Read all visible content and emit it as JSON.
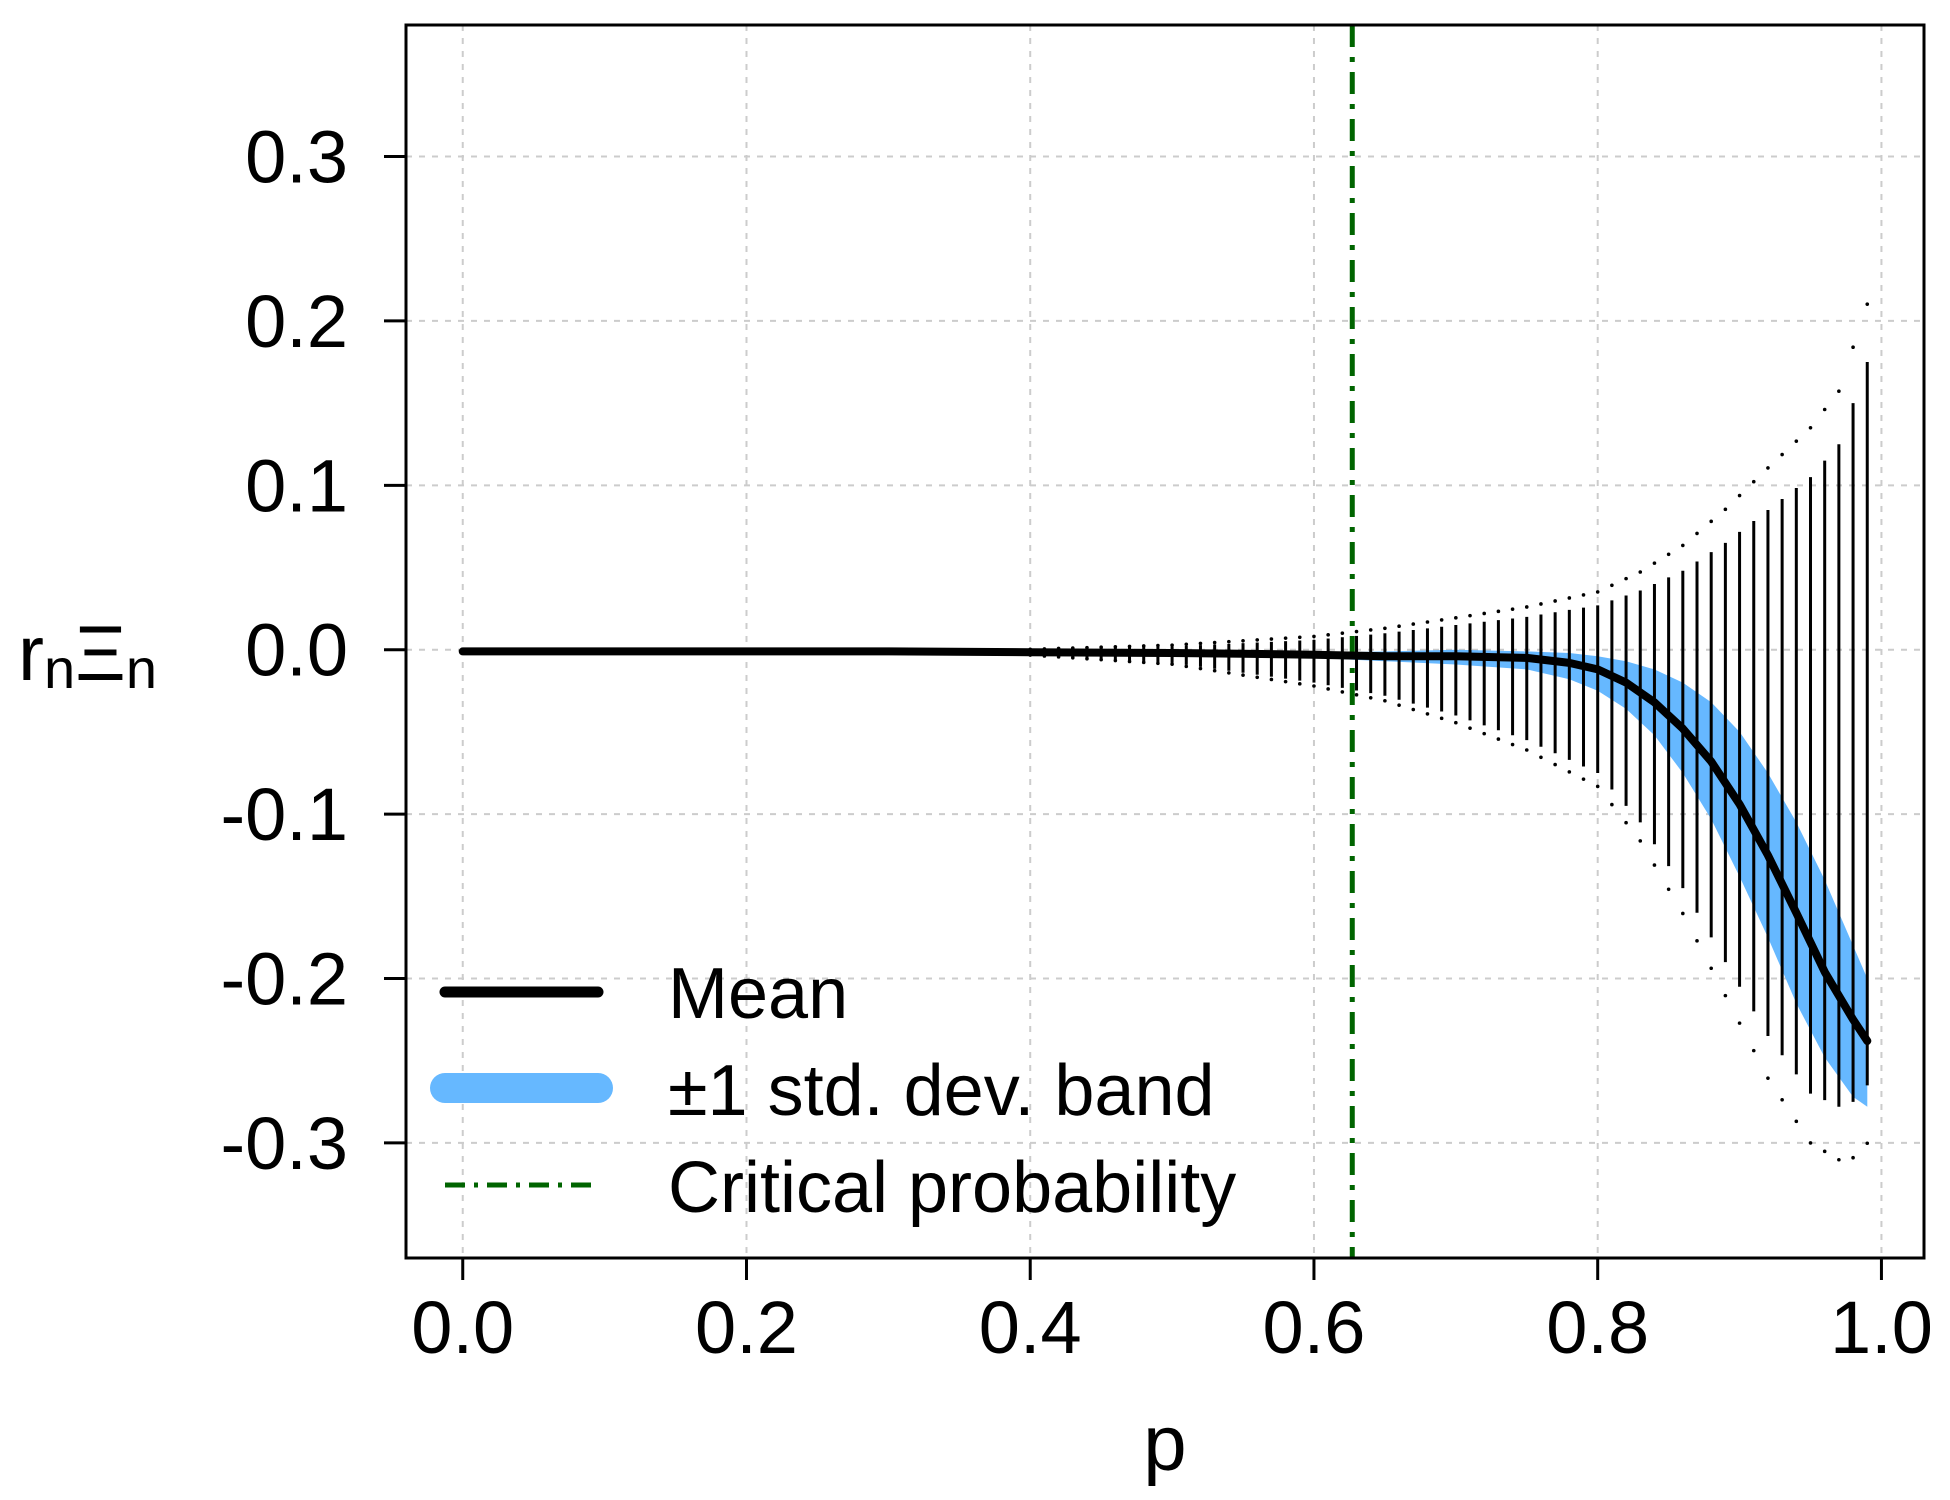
{
  "chart_data": {
    "type": "line",
    "title": "",
    "xlabel": "p",
    "ylabel": {
      "base1": "r",
      "sub1": "n",
      "base2": "Ξ",
      "sub2": "n"
    },
    "xlim": [
      -0.04,
      1.03
    ],
    "ylim": [
      -0.37,
      0.38
    ],
    "x_ticks": [
      0.0,
      0.2,
      0.4,
      0.6,
      0.8,
      1.0
    ],
    "x_tick_labels": [
      "0.0",
      "0.2",
      "0.4",
      "0.6",
      "0.8",
      "1.0"
    ],
    "y_ticks": [
      -0.3,
      -0.2,
      -0.1,
      0.0,
      0.1,
      0.2,
      0.3
    ],
    "y_tick_labels": [
      "-0.3",
      "-0.2",
      "-0.1",
      "0.0",
      "0.1",
      "0.2",
      "0.3"
    ],
    "grid": true,
    "critical_probability": 0.627,
    "mean": {
      "x": [
        0.0,
        0.1,
        0.2,
        0.3,
        0.4,
        0.5,
        0.55,
        0.6,
        0.65,
        0.7,
        0.75,
        0.78,
        0.8,
        0.82,
        0.84,
        0.86,
        0.88,
        0.9,
        0.92,
        0.94,
        0.96,
        0.98,
        0.99
      ],
      "y": [
        -0.001,
        -0.001,
        -0.001,
        -0.001,
        -0.0015,
        -0.002,
        -0.0025,
        -0.003,
        -0.004,
        -0.004,
        -0.005,
        -0.008,
        -0.012,
        -0.02,
        -0.032,
        -0.048,
        -0.068,
        -0.094,
        -0.125,
        -0.16,
        -0.196,
        -0.225,
        -0.238
      ]
    },
    "band": {
      "x": [
        0.6,
        0.65,
        0.7,
        0.75,
        0.78,
        0.8,
        0.82,
        0.84,
        0.86,
        0.88,
        0.9,
        0.92,
        0.94,
        0.96,
        0.98,
        0.99
      ],
      "upper": [
        -0.002,
        -0.001,
        0.0,
        -0.001,
        -0.002,
        -0.004,
        -0.007,
        -0.012,
        -0.02,
        -0.032,
        -0.05,
        -0.075,
        -0.105,
        -0.14,
        -0.18,
        -0.2
      ],
      "lower": [
        -0.005,
        -0.007,
        -0.009,
        -0.012,
        -0.018,
        -0.025,
        -0.036,
        -0.052,
        -0.075,
        -0.103,
        -0.138,
        -0.175,
        -0.215,
        -0.248,
        -0.272,
        -0.278
      ]
    },
    "sample_spread": {
      "start_p": 0.4,
      "end_p": 0.99,
      "step": 0.01,
      "upper": [
        0.0,
        0.002,
        0.004,
        0.006,
        0.01,
        0.015,
        0.02,
        0.027,
        0.036,
        0.048,
        0.065,
        0.085,
        0.105,
        0.125,
        0.15,
        0.175
      ],
      "lower": [
        -0.003,
        -0.008,
        -0.014,
        -0.02,
        -0.028,
        -0.04,
        -0.055,
        -0.075,
        -0.105,
        -0.145,
        -0.19,
        -0.235,
        -0.27,
        -0.278,
        -0.275,
        -0.265
      ],
      "knots": [
        0.4,
        0.5,
        0.55,
        0.6,
        0.65,
        0.7,
        0.75,
        0.8,
        0.83,
        0.86,
        0.89,
        0.92,
        0.95,
        0.97,
        0.98,
        0.99
      ]
    },
    "legend": {
      "position": "bottom-left",
      "items": [
        {
          "label": "Mean",
          "color": "#000000",
          "style": "solid-thick"
        },
        {
          "label": "±1 std. dev. band",
          "color": "#66b8ff",
          "style": "band"
        },
        {
          "label": "Critical probability",
          "color": "#006400",
          "style": "dashdot"
        }
      ]
    },
    "colors": {
      "mean": "#000000",
      "band": "#66b8ff",
      "critical": "#006400",
      "grid": "#cccccc",
      "samples": "#000000"
    }
  }
}
